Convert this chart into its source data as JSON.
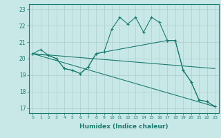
{
  "xlabel": "Humidex (Indice chaleur)",
  "line_color": "#1a7a6e",
  "bg_color": "#c8e8e8",
  "grid_color": "#b0cccc",
  "xlim": [
    -0.5,
    23.5
  ],
  "ylim": [
    16.7,
    23.3
  ],
  "yticks": [
    17,
    18,
    19,
    20,
    21,
    22,
    23
  ],
  "xticks": [
    0,
    1,
    2,
    3,
    4,
    5,
    6,
    7,
    8,
    9,
    10,
    11,
    12,
    13,
    14,
    15,
    16,
    17,
    18,
    19,
    20,
    21,
    22,
    23
  ],
  "line1_x": [
    0,
    1,
    2,
    3,
    4,
    5,
    6,
    7,
    8,
    9,
    10,
    11,
    12,
    13,
    14,
    15,
    16,
    17,
    18,
    19,
    20,
    21,
    22,
    23
  ],
  "line1_y": [
    20.3,
    20.55,
    20.2,
    20.0,
    19.4,
    19.3,
    19.1,
    19.5,
    20.3,
    20.4,
    21.8,
    22.5,
    22.1,
    22.5,
    21.6,
    22.5,
    22.2,
    21.1,
    21.1,
    19.3,
    18.6,
    17.5,
    17.4,
    17.1
  ],
  "line2_x": [
    0,
    23
  ],
  "line2_y": [
    20.3,
    17.1
  ],
  "line3_x": [
    0,
    2,
    3,
    4,
    5,
    6,
    7,
    8,
    9,
    17,
    18,
    19,
    20,
    21,
    22,
    23
  ],
  "line3_y": [
    20.3,
    20.2,
    20.0,
    19.4,
    19.3,
    19.1,
    19.5,
    20.3,
    20.4,
    21.1,
    21.1,
    19.3,
    18.6,
    17.5,
    17.4,
    17.1
  ],
  "line4_x": [
    0,
    23
  ],
  "line4_y": [
    20.3,
    19.4
  ]
}
